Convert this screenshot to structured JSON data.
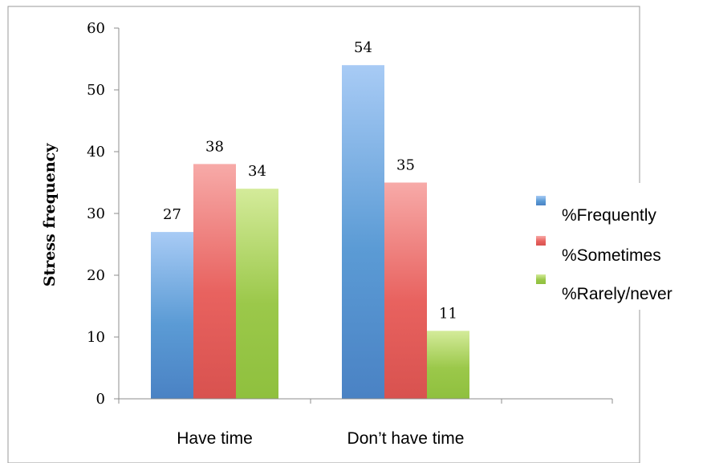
{
  "chart_data": {
    "type": "bar",
    "categories": [
      "Have time",
      "Don’t have time"
    ],
    "series": [
      {
        "name": "%Frequently",
        "values": [
          27,
          54
        ],
        "color": "#5b9bd5",
        "color_light": "#a8cbf5",
        "color_dark": "#4a82c4"
      },
      {
        "name": "%Sometimes",
        "values": [
          38,
          35
        ],
        "color": "#e8625f",
        "color_light": "#f7aaa8",
        "color_dark": "#d8524f"
      },
      {
        "name": "%Rarely/never",
        "values": [
          34,
          11
        ],
        "color": "#9bc84a",
        "color_light": "#d4eb9a",
        "color_dark": "#8fc03e"
      }
    ],
    "ylabel": "Stress frequency",
    "xlabel": "",
    "title": "",
    "ylim": [
      0,
      60
    ],
    "yticks": [
      0,
      10,
      20,
      30,
      40,
      50,
      60
    ],
    "grid": false,
    "legend_position": "right",
    "data_labels": true
  }
}
